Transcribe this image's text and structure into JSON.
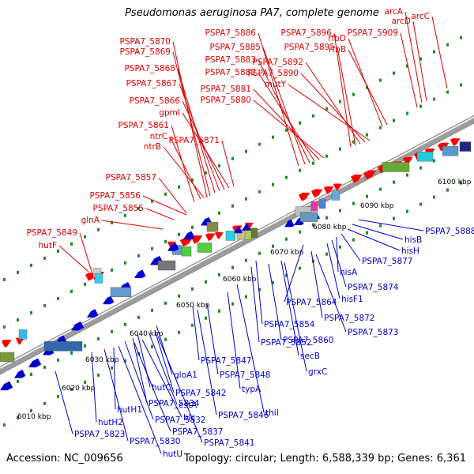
{
  "title": "Pseudomonas aeruginosa PA7, complete genome",
  "accession": "Accession: NC_009656",
  "topology": "Topology: circular; Length: 6,588,339 bp; Genes: 6,361",
  "colors": {
    "forward_feature": "#ff0000",
    "reverse_feature": "#0000cc",
    "forward_label": "#dd0000",
    "reverse_label": "#0000cc",
    "backbone": "#bbbbbb",
    "dot_track": "#228B22"
  },
  "scale_ticks": [
    "6010 kbp",
    "6020 kbp",
    "6030 kbp",
    "6040 kbp",
    "6050 kbp",
    "6060 kbp",
    "6070 kbp",
    "6080 kbp",
    "6090 kbp",
    "6100 kbp"
  ],
  "forward_labels": [
    "PSPA7_5870",
    "PSPA7_5869",
    "PSPA7_5868",
    "PSPA7_5867",
    "PSPA7_5866",
    "gpmI",
    "PSPA7_5861",
    "ntrC",
    "ntrB",
    "PSPA7_5857",
    "PSPA7_5856",
    "PSPA7_5855",
    "glnA",
    "PSPA7_5849",
    "hutF",
    "PSPA7_5871",
    "PSPA7_5886",
    "PSPA7_5885",
    "PSPA7_5883",
    "PSPA7_5882",
    "PSPA7_5881",
    "PSPA7_5880",
    "PSPA7_5896",
    "PSPA7_5895",
    "PSPA7_5892",
    "PSPA7_5890",
    "mutY",
    "rfbD",
    "rfbB",
    "PSPA7_5909",
    "arcA",
    "arcD",
    "arcC"
  ],
  "reverse_labels": [
    "PSPA7_5888",
    "hisB",
    "hisH",
    "PSPA7_5877",
    "hisA",
    "PSPA7_5874",
    "hisF1",
    "PSPA7_5864",
    "PSPA7_5872",
    "PSPA7_5873",
    "PSPA7_5854",
    "PSPA7_5852",
    "PSPA7_5860",
    "secB",
    "grxC",
    "PSPA7_5847",
    "PSPA7_5848",
    "typA",
    "thiI",
    "gloA1",
    "PSPA7_5842",
    "estA",
    "PSPA7_5846",
    "hutC",
    "PSPA7_5834",
    "blc",
    "hutH1",
    "PSPA7_5832",
    "PSPA7_5837",
    "hutH2",
    "PSPA7_5841",
    "PSPA7_5830",
    "PSPA7_5823",
    "hutU"
  ]
}
